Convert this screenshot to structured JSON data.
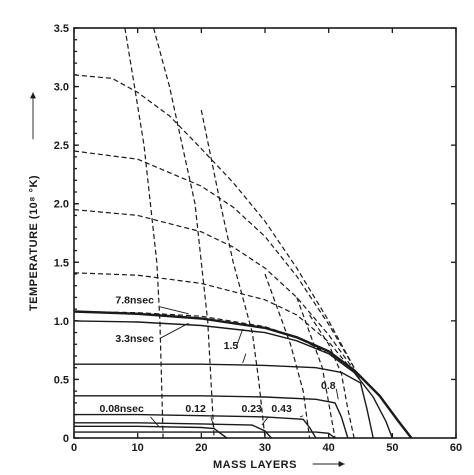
{
  "chart_data": {
    "type": "line",
    "title": "",
    "xlabel": "MASS LAYERS",
    "ylabel": "TEMPERATURE (10⁸ °K)",
    "xlim": [
      0,
      60
    ],
    "ylim": [
      0,
      3.5
    ],
    "x_ticks": [
      "0",
      "10",
      "20",
      "30",
      "40",
      "50",
      "60"
    ],
    "y_ticks": [
      "0",
      "0.5",
      "1.0",
      "1.5",
      "2.0",
      "2.5",
      "3.0",
      "3.5"
    ],
    "grid": false,
    "series": [
      {
        "style": "solid",
        "x": [
          0,
          10,
          20,
          30,
          35,
          38,
          40,
          41
        ],
        "y": [
          0.05,
          0.05,
          0.05,
          0.05,
          0.05,
          0.05,
          0.04,
          0
        ]
      },
      {
        "style": "solid",
        "x": [
          0,
          10,
          20,
          22,
          23,
          24
        ],
        "y": [
          0.1,
          0.1,
          0.09,
          0.08,
          0.04,
          0
        ]
      },
      {
        "style": "solid",
        "x": [
          0,
          10,
          20,
          28,
          30,
          31
        ],
        "y": [
          0.13,
          0.13,
          0.12,
          0.11,
          0.06,
          0
        ]
      },
      {
        "style": "solid",
        "x": [
          0,
          10,
          20,
          30,
          36,
          37,
          38
        ],
        "y": [
          0.2,
          0.2,
          0.19,
          0.18,
          0.16,
          0.09,
          0
        ]
      },
      {
        "style": "solid",
        "x": [
          0,
          10,
          20,
          30,
          38,
          41,
          42,
          43
        ],
        "y": [
          0.36,
          0.36,
          0.36,
          0.35,
          0.33,
          0.3,
          0.18,
          0
        ]
      },
      {
        "style": "solid",
        "x": [
          0,
          10,
          20,
          30,
          38,
          42,
          45,
          46,
          47
        ],
        "y": [
          0.63,
          0.63,
          0.63,
          0.62,
          0.6,
          0.56,
          0.47,
          0.25,
          0
        ]
      },
      {
        "style": "solid",
        "x": [
          0,
          10,
          20,
          30,
          35,
          40,
          44,
          47,
          49,
          50
        ],
        "y": [
          1.0,
          0.99,
          0.96,
          0.9,
          0.83,
          0.72,
          0.56,
          0.35,
          0.14,
          0
        ]
      },
      {
        "style": "solid-bold",
        "x": [
          0,
          10,
          20,
          30,
          35,
          40,
          44,
          48,
          51,
          53
        ],
        "y": [
          1.08,
          1.06,
          1.02,
          0.94,
          0.86,
          0.74,
          0.58,
          0.36,
          0.14,
          0
        ]
      },
      {
        "style": "dashed",
        "x": [
          0,
          10,
          20,
          30,
          35,
          40,
          44,
          45
        ],
        "y": [
          1.08,
          1.07,
          1.04,
          0.95,
          0.86,
          0.72,
          0.56,
          0.5
        ]
      },
      {
        "style": "dashed",
        "x": [
          0,
          10,
          20,
          30,
          35,
          40,
          44
        ],
        "y": [
          1.41,
          1.39,
          1.32,
          1.18,
          1.05,
          0.82,
          0.56
        ]
      },
      {
        "style": "dashed",
        "x": [
          0,
          10,
          20,
          25,
          30,
          35,
          40,
          44
        ],
        "y": [
          1.95,
          1.9,
          1.76,
          1.63,
          1.45,
          1.2,
          0.88,
          0.58
        ]
      },
      {
        "style": "dashed",
        "x": [
          0,
          10,
          20,
          25,
          30,
          35,
          40,
          44
        ],
        "y": [
          2.45,
          2.38,
          2.15,
          1.97,
          1.72,
          1.38,
          0.97,
          0.6
        ]
      },
      {
        "style": "dashed",
        "x": [
          0,
          6,
          10,
          15,
          20,
          25,
          30,
          35,
          40,
          44
        ],
        "y": [
          3.1,
          3.07,
          2.95,
          2.75,
          2.47,
          2.18,
          1.85,
          1.45,
          1.0,
          0.6
        ]
      },
      {
        "style": "dashed",
        "x": [
          8,
          9.5,
          11,
          12,
          13,
          13.5,
          14
        ],
        "y": [
          3.5,
          3.0,
          2.5,
          2.0,
          1.5,
          1.0,
          0.0
        ]
      },
      {
        "style": "dashed",
        "x": [
          12.5,
          15,
          17,
          19,
          20,
          21,
          21.5,
          22
        ],
        "y": [
          3.5,
          3.0,
          2.5,
          2.0,
          1.5,
          1.0,
          0.5,
          0.0
        ]
      },
      {
        "style": "dashed",
        "x": [
          20,
          23,
          25,
          26.5,
          28,
          29,
          30
        ],
        "y": [
          2.8,
          2.0,
          1.5,
          1.2,
          0.9,
          0.5,
          0.0
        ]
      },
      {
        "style": "dashed",
        "x": [
          30,
          32,
          34,
          36,
          37
        ],
        "y": [
          1.4,
          1.1,
          0.8,
          0.4,
          0.0
        ]
      },
      {
        "style": "dashed",
        "x": [
          35,
          37,
          39,
          40,
          41
        ],
        "y": [
          1.2,
          0.9,
          0.6,
          0.3,
          0.0
        ]
      },
      {
        "style": "dashed",
        "x": [
          37,
          40,
          42,
          43,
          44
        ],
        "y": [
          1.05,
          0.8,
          0.55,
          0.25,
          0.0
        ]
      }
    ],
    "annotations": [
      {
        "text": "7.8nsec",
        "x": 6.5,
        "y": 1.15
      },
      {
        "text": "3.3nsec",
        "x": 6.5,
        "y": 0.82
      },
      {
        "text": "1.5",
        "x": 23.5,
        "y": 0.76
      },
      {
        "text": "0.8",
        "x": 38.8,
        "y": 0.42
      },
      {
        "text": "0.43",
        "x": 31,
        "y": 0.22
      },
      {
        "text": "0.23",
        "x": 26.3,
        "y": 0.22
      },
      {
        "text": "0.12",
        "x": 17.5,
        "y": 0.22
      },
      {
        "text": "0.08nsec",
        "x": 4,
        "y": 0.22
      }
    ]
  }
}
